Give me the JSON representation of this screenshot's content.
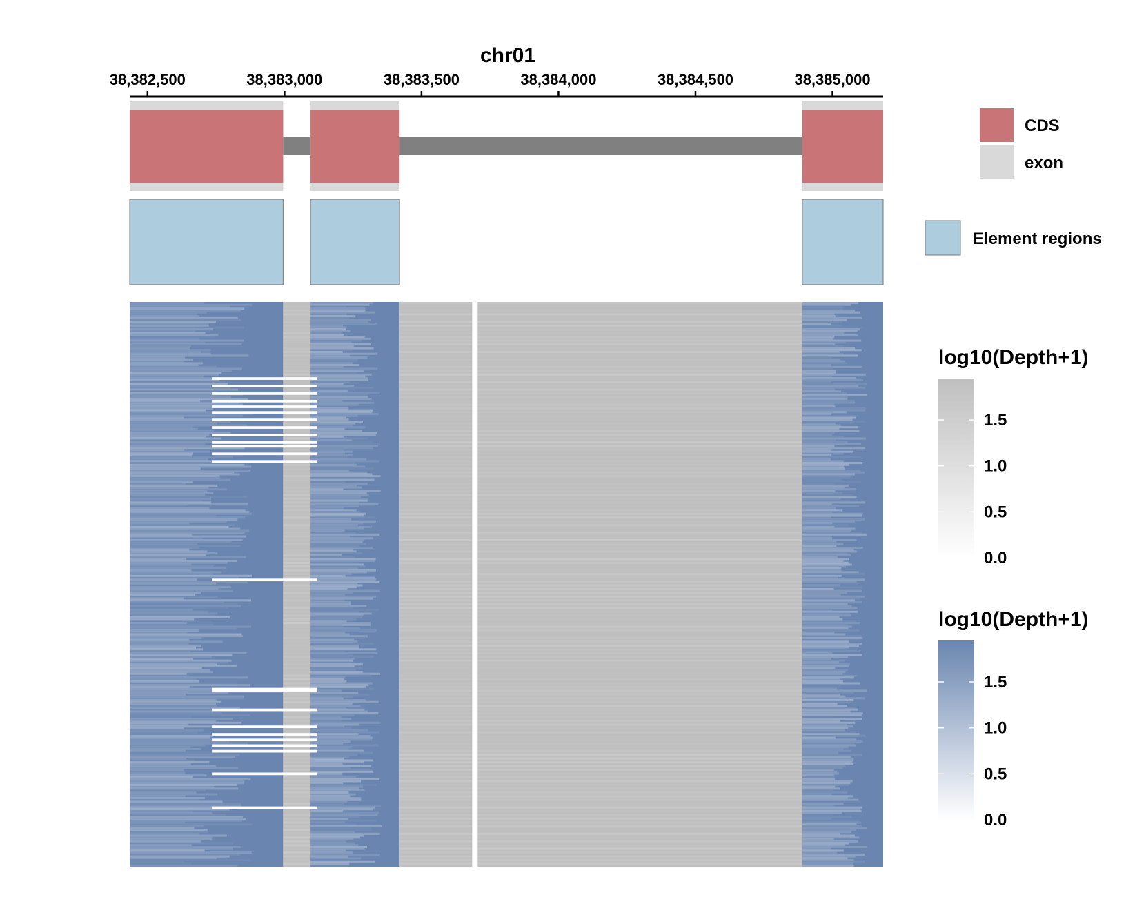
{
  "chart_data": {
    "type": "heatmap",
    "title": "chr01",
    "x_axis": {
      "position": "top",
      "range": [
        38382435,
        38385185
      ],
      "ticks": [
        38382500,
        38383000,
        38383500,
        38384000,
        38384500,
        38385000
      ],
      "tick_labels": [
        "38,382,500",
        "38,383,000",
        "38,383,500",
        "38,384,000",
        "38,384,500",
        "38,385,000"
      ]
    },
    "gene_model": {
      "segments": [
        {
          "type": "exon",
          "start": 38382435,
          "end": 38382995
        },
        {
          "type": "exon",
          "start": 38383095,
          "end": 38383420
        },
        {
          "type": "exon",
          "start": 38384890,
          "end": 38385185
        }
      ],
      "cds": [
        {
          "start": 38382435,
          "end": 38382995
        },
        {
          "start": 38383095,
          "end": 38383420
        },
        {
          "start": 38384890,
          "end": 38385185
        }
      ],
      "intron_line": [
        38382995,
        38384890
      ]
    },
    "element_regions": [
      {
        "start": 38382435,
        "end": 38382995
      },
      {
        "start": 38383095,
        "end": 38383420
      },
      {
        "start": 38384890,
        "end": 38385185
      }
    ],
    "heatmap": {
      "value_name": "log10(Depth+1)",
      "samples": 300,
      "regions": [
        {
          "start": 38382435,
          "end": 38382995,
          "scale": "blue"
        },
        {
          "start": 38382995,
          "end": 38383095,
          "scale": "grey"
        },
        {
          "start": 38383095,
          "end": 38383420,
          "scale": "blue"
        },
        {
          "start": 38383420,
          "end": 38384890,
          "scale": "grey"
        },
        {
          "start": 38384890,
          "end": 38385185,
          "scale": "blue"
        }
      ],
      "missing_column": [
        38383685,
        38383705
      ],
      "missing_rows_start": 38382735,
      "missing_rows_end": 38383120
    },
    "legends": [
      {
        "items": [
          {
            "label": "CDS",
            "color": "#C97476"
          },
          {
            "label": "exon",
            "color": "#D9D9D9"
          }
        ]
      },
      {
        "items": [
          {
            "label": "Element regions",
            "color": "#ADCDDF"
          }
        ]
      },
      {
        "title": "log10(Depth+1)",
        "scale": "grey",
        "ticks": [
          0.0,
          0.5,
          1.0,
          1.5
        ],
        "tick_labels": [
          "0.0",
          "0.5",
          "1.0",
          "1.5"
        ],
        "max": 1.95
      },
      {
        "title": "log10(Depth+1)",
        "scale": "blue",
        "ticks": [
          0.0,
          0.5,
          1.0,
          1.5
        ],
        "tick_labels": [
          "0.0",
          "0.5",
          "1.0",
          "1.5"
        ],
        "max": 1.95
      }
    ],
    "colors": {
      "cds": "#C97476",
      "exon": "#D9D9D9",
      "intron": "#808080",
      "element": "#ADCDDF",
      "grey_high": "#BFBFBF",
      "blue_high": "#6A86B0"
    }
  }
}
